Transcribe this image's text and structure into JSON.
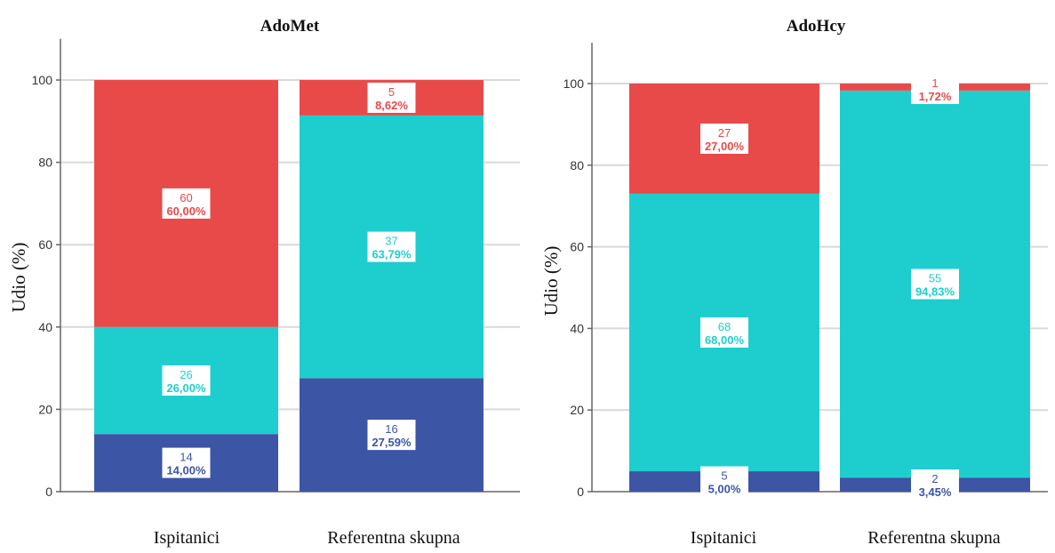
{
  "colors": {
    "red": "#e84a4a",
    "cyan": "#1ecece",
    "blue": "#3c55a5",
    "grid": "#d9d9d9",
    "axis": "#666666"
  },
  "chart_data": [
    {
      "type": "bar",
      "stacked": true,
      "title": "AdoMet",
      "ylabel": "Udio (%)",
      "xlabel": "",
      "ylim": [
        0,
        110
      ],
      "yticks": [
        0,
        20,
        40,
        60,
        80,
        100
      ],
      "grid": true,
      "categories": [
        "Ispitanici",
        "Referentna skupna"
      ],
      "series": [
        {
          "color": "#3c55a5",
          "values": [
            14.0,
            27.59
          ],
          "counts": [
            "14",
            "16"
          ],
          "labels": [
            "14,00%",
            "27,59%"
          ]
        },
        {
          "color": "#1ecece",
          "values": [
            26.0,
            63.79
          ],
          "counts": [
            "26",
            "37"
          ],
          "labels": [
            "26,00%",
            "63,79%"
          ]
        },
        {
          "color": "#e84a4a",
          "values": [
            60.0,
            8.62
          ],
          "counts": [
            "60",
            "5"
          ],
          "labels": [
            "60,00%",
            "8,62%"
          ]
        }
      ]
    },
    {
      "type": "bar",
      "stacked": true,
      "title": "AdoHcy",
      "ylabel": "Udio (%)",
      "xlabel": "",
      "ylim": [
        0,
        110
      ],
      "yticks": [
        0,
        20,
        40,
        60,
        80,
        100
      ],
      "grid": true,
      "categories": [
        "Ispitanici",
        "Referentna skupna"
      ],
      "series": [
        {
          "color": "#3c55a5",
          "values": [
            5.0,
            3.45
          ],
          "counts": [
            "5",
            "2"
          ],
          "labels": [
            "5,00%",
            "3,45%"
          ]
        },
        {
          "color": "#1ecece",
          "values": [
            68.0,
            94.83
          ],
          "counts": [
            "68",
            "55"
          ],
          "labels": [
            "68,00%",
            "94,83%"
          ]
        },
        {
          "color": "#e84a4a",
          "values": [
            27.0,
            1.72
          ],
          "counts": [
            "27",
            "1"
          ],
          "labels": [
            "27,00%",
            "1,72%"
          ]
        }
      ]
    }
  ]
}
